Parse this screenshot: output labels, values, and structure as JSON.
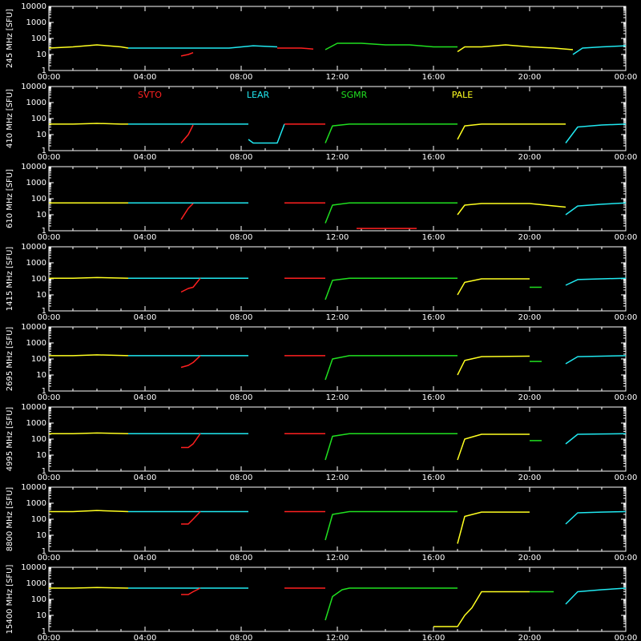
{
  "chart_data": {
    "type": "line",
    "y_scale": "log",
    "ylim": [
      1,
      10000
    ],
    "xlim": [
      0,
      24
    ],
    "x_tick_labels": [
      "00:00",
      "04:00",
      "08:00",
      "12:00",
      "16:00",
      "20:00",
      "00:00"
    ],
    "y_tick_labels": [
      "1",
      "10",
      "100",
      "1000",
      "10000"
    ],
    "stations": [
      {
        "name": "SVTO",
        "color": "#ff2020"
      },
      {
        "name": "LEAR",
        "color": "#20e8f0"
      },
      {
        "name": "SGMR",
        "color": "#20e020"
      },
      {
        "name": "PALE",
        "color": "#ffff20"
      }
    ],
    "panels": [
      {
        "ylabel": "245 MHz [SFU]",
        "segments": [
          {
            "station": "PALE",
            "x": [
              0.0,
              1.0,
              2.0,
              3.0,
              3.3
            ],
            "y": [
              25,
              30,
              40,
              30,
              25
            ]
          },
          {
            "station": "LEAR",
            "x": [
              3.3,
              4.5,
              5.5,
              6.5,
              7.5,
              8.5,
              9.5
            ],
            "y": [
              25,
              25,
              25,
              25,
              25,
              35,
              30
            ]
          },
          {
            "station": "SVTO",
            "x": [
              5.5,
              5.8,
              6.0
            ],
            "y": [
              8,
              10,
              13
            ]
          },
          {
            "station": "SVTO",
            "x": [
              9.5,
              10.5,
              11.0
            ],
            "y": [
              25,
              25,
              22
            ]
          },
          {
            "station": "SGMR",
            "x": [
              11.5,
              12.0,
              13.0,
              14.0,
              15.0,
              16.0,
              17.0
            ],
            "y": [
              20,
              50,
              50,
              40,
              40,
              30,
              30
            ]
          },
          {
            "station": "PALE",
            "x": [
              17.0,
              17.3,
              18.0,
              19.0,
              20.0,
              21.0,
              21.8
            ],
            "y": [
              15,
              30,
              30,
              40,
              30,
              25,
              20
            ]
          },
          {
            "station": "LEAR",
            "x": [
              21.8,
              22.2,
              23.0,
              24.0
            ],
            "y": [
              10,
              25,
              30,
              35
            ]
          }
        ]
      },
      {
        "ylabel": "410 MHz [SFU]",
        "segments": [
          {
            "station": "PALE",
            "x": [
              0.0,
              1.0,
              2.0,
              3.0,
              3.3
            ],
            "y": [
              45,
              45,
              50,
              45,
              45
            ]
          },
          {
            "station": "LEAR",
            "x": [
              3.3,
              4.5,
              5.5,
              6.0,
              7.0,
              8.0,
              8.3
            ],
            "y": [
              45,
              45,
              45,
              45,
              45,
              45,
              45
            ]
          },
          {
            "station": "SVTO",
            "x": [
              5.5,
              5.8,
              6.0
            ],
            "y": [
              3,
              10,
              40
            ]
          },
          {
            "station": "LEAR",
            "x": [
              8.3,
              8.5,
              9.5,
              9.8
            ],
            "y": [
              5,
              3,
              3,
              45
            ]
          },
          {
            "station": "SVTO",
            "x": [
              9.8,
              10.5,
              11.5
            ],
            "y": [
              45,
              45,
              45
            ]
          },
          {
            "station": "SGMR",
            "x": [
              11.5,
              11.8,
              12.5,
              14.0,
              16.0,
              17.0
            ],
            "y": [
              3,
              35,
              45,
              45,
              45,
              45
            ]
          },
          {
            "station": "PALE",
            "x": [
              17.0,
              17.3,
              18.0,
              20.0,
              21.5
            ],
            "y": [
              5,
              35,
              45,
              45,
              45
            ]
          },
          {
            "station": "LEAR",
            "x": [
              21.5,
              22.0,
              23.0,
              24.0
            ],
            "y": [
              3,
              30,
              40,
              45
            ]
          }
        ]
      },
      {
        "ylabel": "610 MHz [SFU]",
        "segments": [
          {
            "station": "PALE",
            "x": [
              0.0,
              1.0,
              2.0,
              3.3
            ],
            "y": [
              55,
              55,
              55,
              55
            ]
          },
          {
            "station": "LEAR",
            "x": [
              3.3,
              4.5,
              5.5,
              7.0,
              8.3
            ],
            "y": [
              55,
              55,
              55,
              55,
              55
            ]
          },
          {
            "station": "SVTO",
            "x": [
              5.5,
              5.8,
              6.0
            ],
            "y": [
              5,
              25,
              50
            ]
          },
          {
            "station": "SVTO",
            "x": [
              9.8,
              10.5,
              11.5
            ],
            "y": [
              55,
              55,
              55
            ]
          },
          {
            "station": "SGMR",
            "x": [
              11.5,
              11.8,
              12.5,
              14.0,
              16.0,
              17.0
            ],
            "y": [
              3,
              40,
              55,
              55,
              55,
              55
            ]
          },
          {
            "station": "SVTO",
            "x": [
              12.8,
              15.3
            ],
            "y": [
              1.4,
              1.4
            ]
          },
          {
            "station": "PALE",
            "x": [
              17.0,
              17.3,
              18.0,
              20.0,
              21.5
            ],
            "y": [
              10,
              40,
              50,
              50,
              30
            ]
          },
          {
            "station": "LEAR",
            "x": [
              21.5,
              22.0,
              23.0,
              24.0
            ],
            "y": [
              10,
              35,
              45,
              55
            ]
          }
        ]
      },
      {
        "ylabel": "1415 MHz [SFU]",
        "segments": [
          {
            "station": "PALE",
            "x": [
              0.0,
              1.0,
              2.0,
              3.3
            ],
            "y": [
              110,
              110,
              120,
              110
            ]
          },
          {
            "station": "LEAR",
            "x": [
              3.3,
              4.5,
              5.5,
              7.0,
              8.3
            ],
            "y": [
              110,
              110,
              110,
              110,
              110
            ]
          },
          {
            "station": "SVTO",
            "x": [
              5.5,
              5.8,
              6.0,
              6.3
            ],
            "y": [
              15,
              25,
              30,
              110
            ]
          },
          {
            "station": "SVTO",
            "x": [
              9.8,
              10.5,
              11.5
            ],
            "y": [
              110,
              110,
              110
            ]
          },
          {
            "station": "SGMR",
            "x": [
              11.5,
              11.8,
              12.5,
              14.0,
              16.0,
              17.0
            ],
            "y": [
              5,
              80,
              110,
              110,
              110,
              110
            ]
          },
          {
            "station": "PALE",
            "x": [
              17.0,
              17.3,
              18.0,
              20.0
            ],
            "y": [
              10,
              60,
              100,
              100
            ]
          },
          {
            "station": "SGMR",
            "x": [
              20.0,
              20.5
            ],
            "y": [
              30,
              30
            ]
          },
          {
            "station": "LEAR",
            "x": [
              21.5,
              22.0,
              23.0,
              24.0
            ],
            "y": [
              40,
              90,
              100,
              110
            ]
          }
        ]
      },
      {
        "ylabel": "2695 MHz [SFU]",
        "segments": [
          {
            "station": "PALE",
            "x": [
              0.0,
              1.0,
              2.0,
              3.3
            ],
            "y": [
              160,
              160,
              180,
              160
            ]
          },
          {
            "station": "LEAR",
            "x": [
              3.3,
              4.5,
              5.5,
              7.0,
              8.3
            ],
            "y": [
              160,
              160,
              160,
              160,
              160
            ]
          },
          {
            "station": "SVTO",
            "x": [
              5.5,
              5.8,
              6.0,
              6.3
            ],
            "y": [
              30,
              40,
              60,
              160
            ]
          },
          {
            "station": "SVTO",
            "x": [
              9.8,
              10.5,
              11.5
            ],
            "y": [
              160,
              160,
              160
            ]
          },
          {
            "station": "SGMR",
            "x": [
              11.5,
              11.8,
              12.5,
              14.0,
              16.0,
              17.0
            ],
            "y": [
              5,
              100,
              160,
              160,
              160,
              160
            ]
          },
          {
            "station": "PALE",
            "x": [
              17.0,
              17.3,
              18.0,
              20.0
            ],
            "y": [
              10,
              80,
              140,
              150
            ]
          },
          {
            "station": "SGMR",
            "x": [
              20.0,
              20.5
            ],
            "y": [
              70,
              70
            ]
          },
          {
            "station": "LEAR",
            "x": [
              21.5,
              22.0,
              23.0,
              24.0
            ],
            "y": [
              50,
              140,
              150,
              160
            ]
          }
        ]
      },
      {
        "ylabel": "4995 MHz [SFU]",
        "segments": [
          {
            "station": "PALE",
            "x": [
              0.0,
              1.0,
              2.0,
              3.3
            ],
            "y": [
              220,
              220,
              240,
              220
            ]
          },
          {
            "station": "LEAR",
            "x": [
              3.3,
              4.5,
              5.5,
              7.0,
              8.3
            ],
            "y": [
              220,
              220,
              220,
              220,
              220
            ]
          },
          {
            "station": "SVTO",
            "x": [
              5.5,
              5.8,
              6.0,
              6.3
            ],
            "y": [
              30,
              30,
              50,
              220
            ]
          },
          {
            "station": "SVTO",
            "x": [
              9.8,
              10.5,
              11.5
            ],
            "y": [
              220,
              220,
              220
            ]
          },
          {
            "station": "SGMR",
            "x": [
              11.5,
              11.8,
              12.5,
              14.0,
              16.0,
              17.0
            ],
            "y": [
              5,
              150,
              220,
              220,
              220,
              220
            ]
          },
          {
            "station": "PALE",
            "x": [
              17.0,
              17.3,
              18.0,
              20.0
            ],
            "y": [
              5,
              100,
              200,
              200
            ]
          },
          {
            "station": "SGMR",
            "x": [
              20.0,
              20.5
            ],
            "y": [
              80,
              80
            ]
          },
          {
            "station": "LEAR",
            "x": [
              21.5,
              22.0,
              23.0,
              24.0
            ],
            "y": [
              50,
              200,
              210,
              220
            ]
          }
        ]
      },
      {
        "ylabel": "8800 MHz [SFU]",
        "segments": [
          {
            "station": "PALE",
            "x": [
              0.0,
              1.0,
              2.0,
              3.3
            ],
            "y": [
              300,
              300,
              350,
              300
            ]
          },
          {
            "station": "LEAR",
            "x": [
              3.3,
              4.5,
              5.5,
              7.0,
              8.3
            ],
            "y": [
              300,
              300,
              300,
              300,
              300
            ]
          },
          {
            "station": "SVTO",
            "x": [
              5.5,
              5.8,
              6.0,
              6.3
            ],
            "y": [
              50,
              50,
              100,
              300
            ]
          },
          {
            "station": "SVTO",
            "x": [
              9.8,
              10.5,
              11.5
            ],
            "y": [
              300,
              300,
              300
            ]
          },
          {
            "station": "SGMR",
            "x": [
              11.5,
              11.8,
              12.5,
              14.0,
              16.0,
              17.0
            ],
            "y": [
              5,
              200,
              300,
              300,
              300,
              300
            ]
          },
          {
            "station": "PALE",
            "x": [
              17.0,
              17.3,
              18.0,
              20.0
            ],
            "y": [
              3,
              150,
              280,
              280
            ]
          },
          {
            "station": "LEAR",
            "x": [
              21.5,
              22.0,
              23.0,
              24.0
            ],
            "y": [
              50,
              250,
              280,
              300
            ]
          }
        ]
      },
      {
        "ylabel": "15400 MHz [SFU]",
        "segments": [
          {
            "station": "PALE",
            "x": [
              0.0,
              1.0,
              2.0,
              3.3
            ],
            "y": [
              500,
              500,
              550,
              500
            ]
          },
          {
            "station": "LEAR",
            "x": [
              3.3,
              4.5,
              5.5,
              7.0,
              8.3
            ],
            "y": [
              500,
              500,
              500,
              500,
              500
            ]
          },
          {
            "station": "SVTO",
            "x": [
              5.5,
              5.8,
              6.0,
              6.3
            ],
            "y": [
              200,
              200,
              300,
              500
            ]
          },
          {
            "station": "SVTO",
            "x": [
              9.8,
              10.5,
              11.5
            ],
            "y": [
              500,
              500,
              500
            ]
          },
          {
            "station": "SGMR",
            "x": [
              11.5,
              11.8,
              12.2,
              12.5,
              14.0,
              16.0,
              17.0
            ],
            "y": [
              5,
              150,
              400,
              500,
              500,
              500,
              500
            ]
          },
          {
            "station": "PALE",
            "x": [
              16.0,
              17.0,
              17.3,
              17.6,
              18.0,
              20.0
            ],
            "y": [
              2,
              2,
              10,
              30,
              300,
              300
            ]
          },
          {
            "station": "SGMR",
            "x": [
              20.0,
              21.0
            ],
            "y": [
              300,
              300
            ]
          },
          {
            "station": "LEAR",
            "x": [
              21.5,
              22.0,
              23.0,
              24.0
            ],
            "y": [
              50,
              300,
              400,
              500
            ]
          }
        ]
      }
    ]
  }
}
